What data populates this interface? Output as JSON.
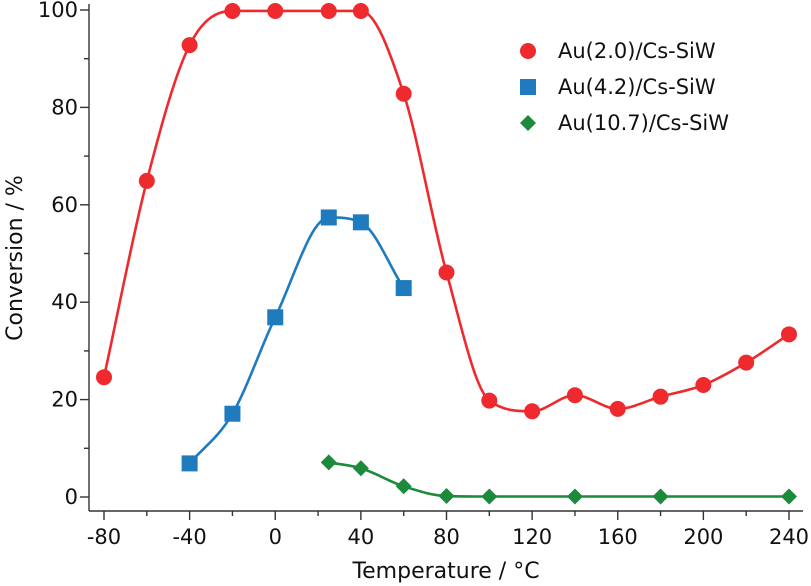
{
  "chart_data": {
    "type": "scatter",
    "title": "",
    "xlabel": "Temperature / °C",
    "ylabel": "Conversion / %",
    "xlim": [
      -83,
      243
    ],
    "ylim": [
      -3,
      101
    ],
    "xticks": [
      -80,
      -40,
      0,
      40,
      80,
      120,
      160,
      200,
      240
    ],
    "yticks": [
      0,
      20,
      40,
      60,
      80,
      100
    ],
    "xtick_labels": [
      "-80",
      "-40",
      "0",
      "40",
      "80",
      "120",
      "160",
      "200",
      "240"
    ],
    "ytick_labels": [
      "0",
      "20",
      "40",
      "60",
      "80",
      "100"
    ],
    "xminor": [
      -60,
      -20,
      20,
      60,
      100,
      140,
      180,
      220
    ],
    "yminor": [
      10,
      30,
      50,
      70,
      90
    ],
    "grid": false,
    "legend_position": "top-right",
    "series": [
      {
        "name": "Au(2.0)/Cs-SiW",
        "marker": "circle",
        "color": "#ee2a2e",
        "x": [
          -80,
          -60,
          -40,
          -20,
          0,
          25,
          40,
          60,
          80,
          100,
          120,
          140,
          160,
          180,
          200,
          220,
          240
        ],
        "y": [
          24.6,
          64.9,
          92.8,
          99.8,
          99.8,
          99.8,
          99.8,
          82.8,
          46.1,
          19.8,
          17.6,
          20.9,
          18.1,
          20.6,
          23.0,
          27.6,
          33.4
        ]
      },
      {
        "name": "Au(4.2)/Cs-SiW",
        "marker": "square",
        "color": "#1f7bbd",
        "x": [
          -40,
          -20,
          0,
          25,
          40,
          60
        ],
        "y": [
          6.9,
          17.1,
          36.9,
          57.4,
          56.4,
          42.9
        ]
      },
      {
        "name": "Au(10.7)/Cs-SiW",
        "marker": "diamond",
        "color": "#1b8a3a",
        "x": [
          25,
          40,
          60,
          80,
          100,
          140,
          180,
          240
        ],
        "y": [
          7.1,
          5.9,
          2.2,
          0.2,
          0.1,
          0.1,
          0.1,
          0.1
        ]
      }
    ]
  }
}
